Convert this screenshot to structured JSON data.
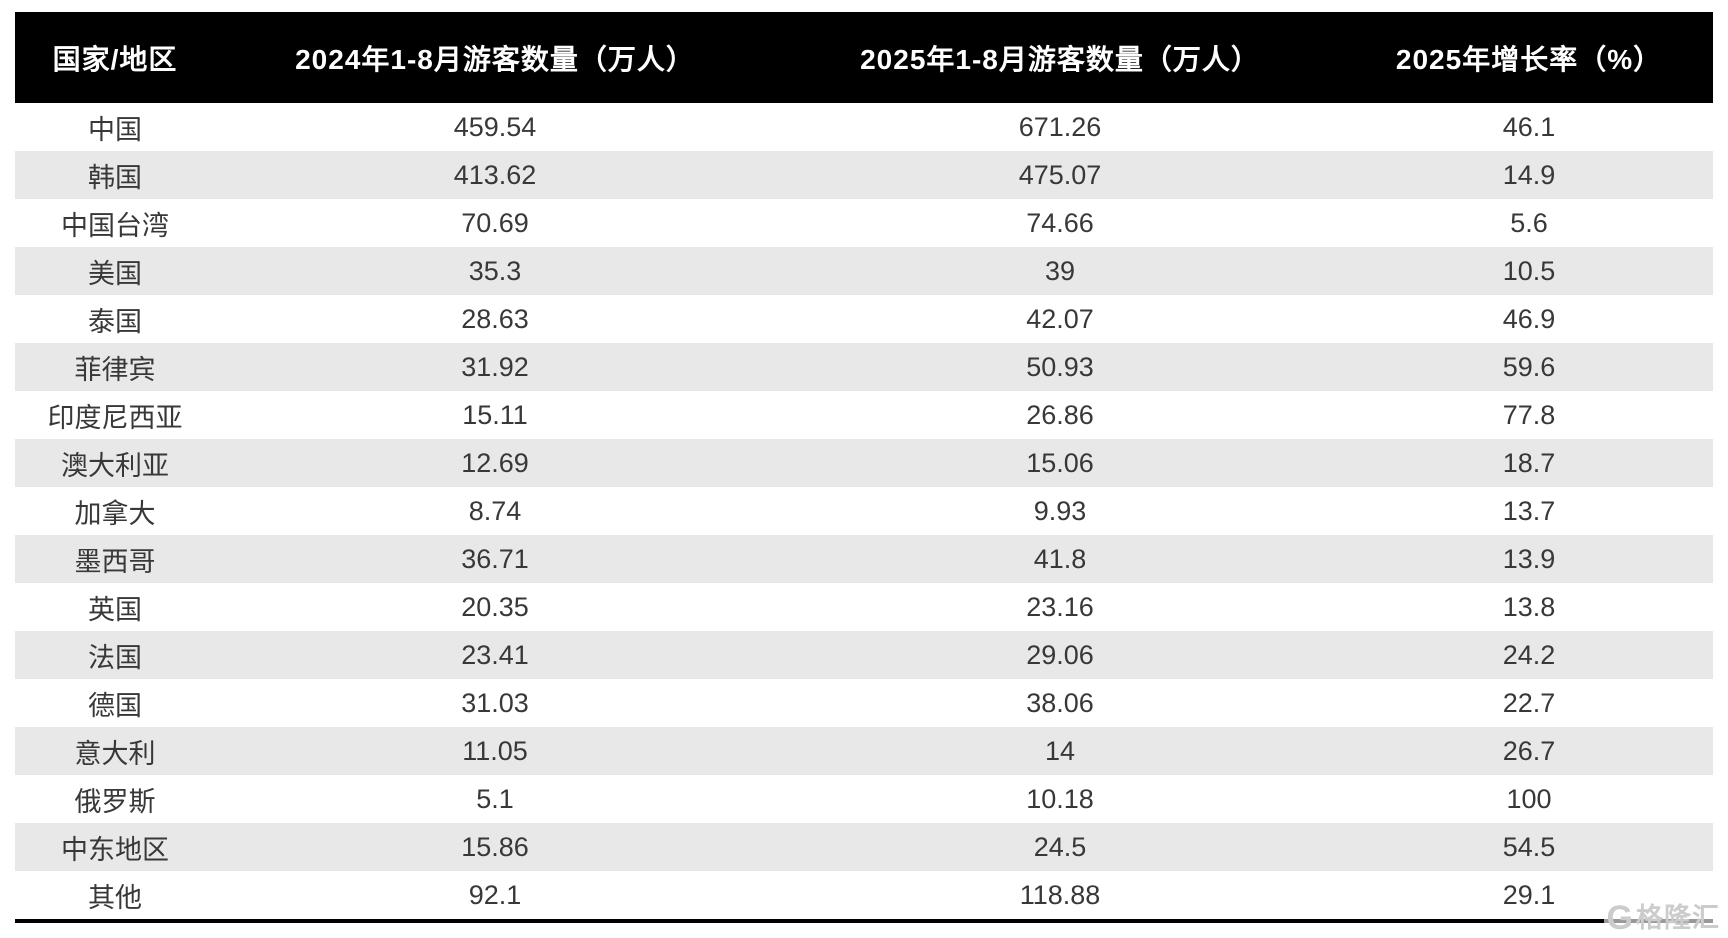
{
  "table": {
    "columns": [
      "国家/地区",
      "2024年1-8月游客数量（万人）",
      "2025年1-8月游客数量（万人）",
      "2025年增长率（%）"
    ],
    "rows": [
      {
        "region": "中国",
        "v2024": "459.54",
        "v2025": "671.26",
        "growth": "46.1"
      },
      {
        "region": "韩国",
        "v2024": "413.62",
        "v2025": "475.07",
        "growth": "14.9"
      },
      {
        "region": "中国台湾",
        "v2024": "70.69",
        "v2025": "74.66",
        "growth": "5.6"
      },
      {
        "region": "美国",
        "v2024": "35.3",
        "v2025": "39",
        "growth": "10.5"
      },
      {
        "region": "泰国",
        "v2024": "28.63",
        "v2025": "42.07",
        "growth": "46.9"
      },
      {
        "region": "菲律宾",
        "v2024": "31.92",
        "v2025": "50.93",
        "growth": "59.6"
      },
      {
        "region": "印度尼西亚",
        "v2024": "15.11",
        "v2025": "26.86",
        "growth": "77.8"
      },
      {
        "region": "澳大利亚",
        "v2024": "12.69",
        "v2025": "15.06",
        "growth": "18.7"
      },
      {
        "region": "加拿大",
        "v2024": "8.74",
        "v2025": "9.93",
        "growth": "13.7"
      },
      {
        "region": "墨西哥",
        "v2024": "36.71",
        "v2025": "41.8",
        "growth": "13.9"
      },
      {
        "region": "英国",
        "v2024": "20.35",
        "v2025": "23.16",
        "growth": "13.8"
      },
      {
        "region": "法国",
        "v2024": "23.41",
        "v2025": "29.06",
        "growth": "24.2"
      },
      {
        "region": "德国",
        "v2024": "31.03",
        "v2025": "38.06",
        "growth": "22.7"
      },
      {
        "region": "意大利",
        "v2024": "11.05",
        "v2025": "14",
        "growth": "26.7"
      },
      {
        "region": "俄罗斯",
        "v2024": "5.1",
        "v2025": "10.18",
        "growth": "100"
      },
      {
        "region": "中东地区",
        "v2024": "15.86",
        "v2025": "24.5",
        "growth": "54.5"
      },
      {
        "region": "其他",
        "v2024": "92.1",
        "v2025": "118.88",
        "growth": "29.1"
      }
    ]
  },
  "watermark": {
    "logo": "G",
    "text": "格隆汇"
  },
  "colors": {
    "header_bg": "#000000",
    "header_text": "#ffffff",
    "row_alt_bg": "#e8e8e8",
    "body_text": "#383838",
    "bottom_border": "#000000",
    "watermark_text": "#cccccc"
  },
  "chart_data": {
    "type": "table",
    "title": "",
    "columns": [
      "国家/地区",
      "2024年1-8月游客数量（万人）",
      "2025年1-8月游客数量（万人）",
      "2025年增长率（%）"
    ],
    "rows": [
      [
        "中国",
        459.54,
        671.26,
        46.1
      ],
      [
        "韩国",
        413.62,
        475.07,
        14.9
      ],
      [
        "中国台湾",
        70.69,
        74.66,
        5.6
      ],
      [
        "美国",
        35.3,
        39,
        10.5
      ],
      [
        "泰国",
        28.63,
        42.07,
        46.9
      ],
      [
        "菲律宾",
        31.92,
        50.93,
        59.6
      ],
      [
        "印度尼西亚",
        15.11,
        26.86,
        77.8
      ],
      [
        "澳大利亚",
        12.69,
        15.06,
        18.7
      ],
      [
        "加拿大",
        8.74,
        9.93,
        13.7
      ],
      [
        "墨西哥",
        36.71,
        41.8,
        13.9
      ],
      [
        "英国",
        20.35,
        23.16,
        13.8
      ],
      [
        "法国",
        23.41,
        29.06,
        24.2
      ],
      [
        "德国",
        31.03,
        38.06,
        22.7
      ],
      [
        "意大利",
        11.05,
        14,
        26.7
      ],
      [
        "俄罗斯",
        5.1,
        10.18,
        100
      ],
      [
        "中东地区",
        15.86,
        24.5,
        54.5
      ],
      [
        "其他",
        92.1,
        118.88,
        29.1
      ]
    ]
  }
}
